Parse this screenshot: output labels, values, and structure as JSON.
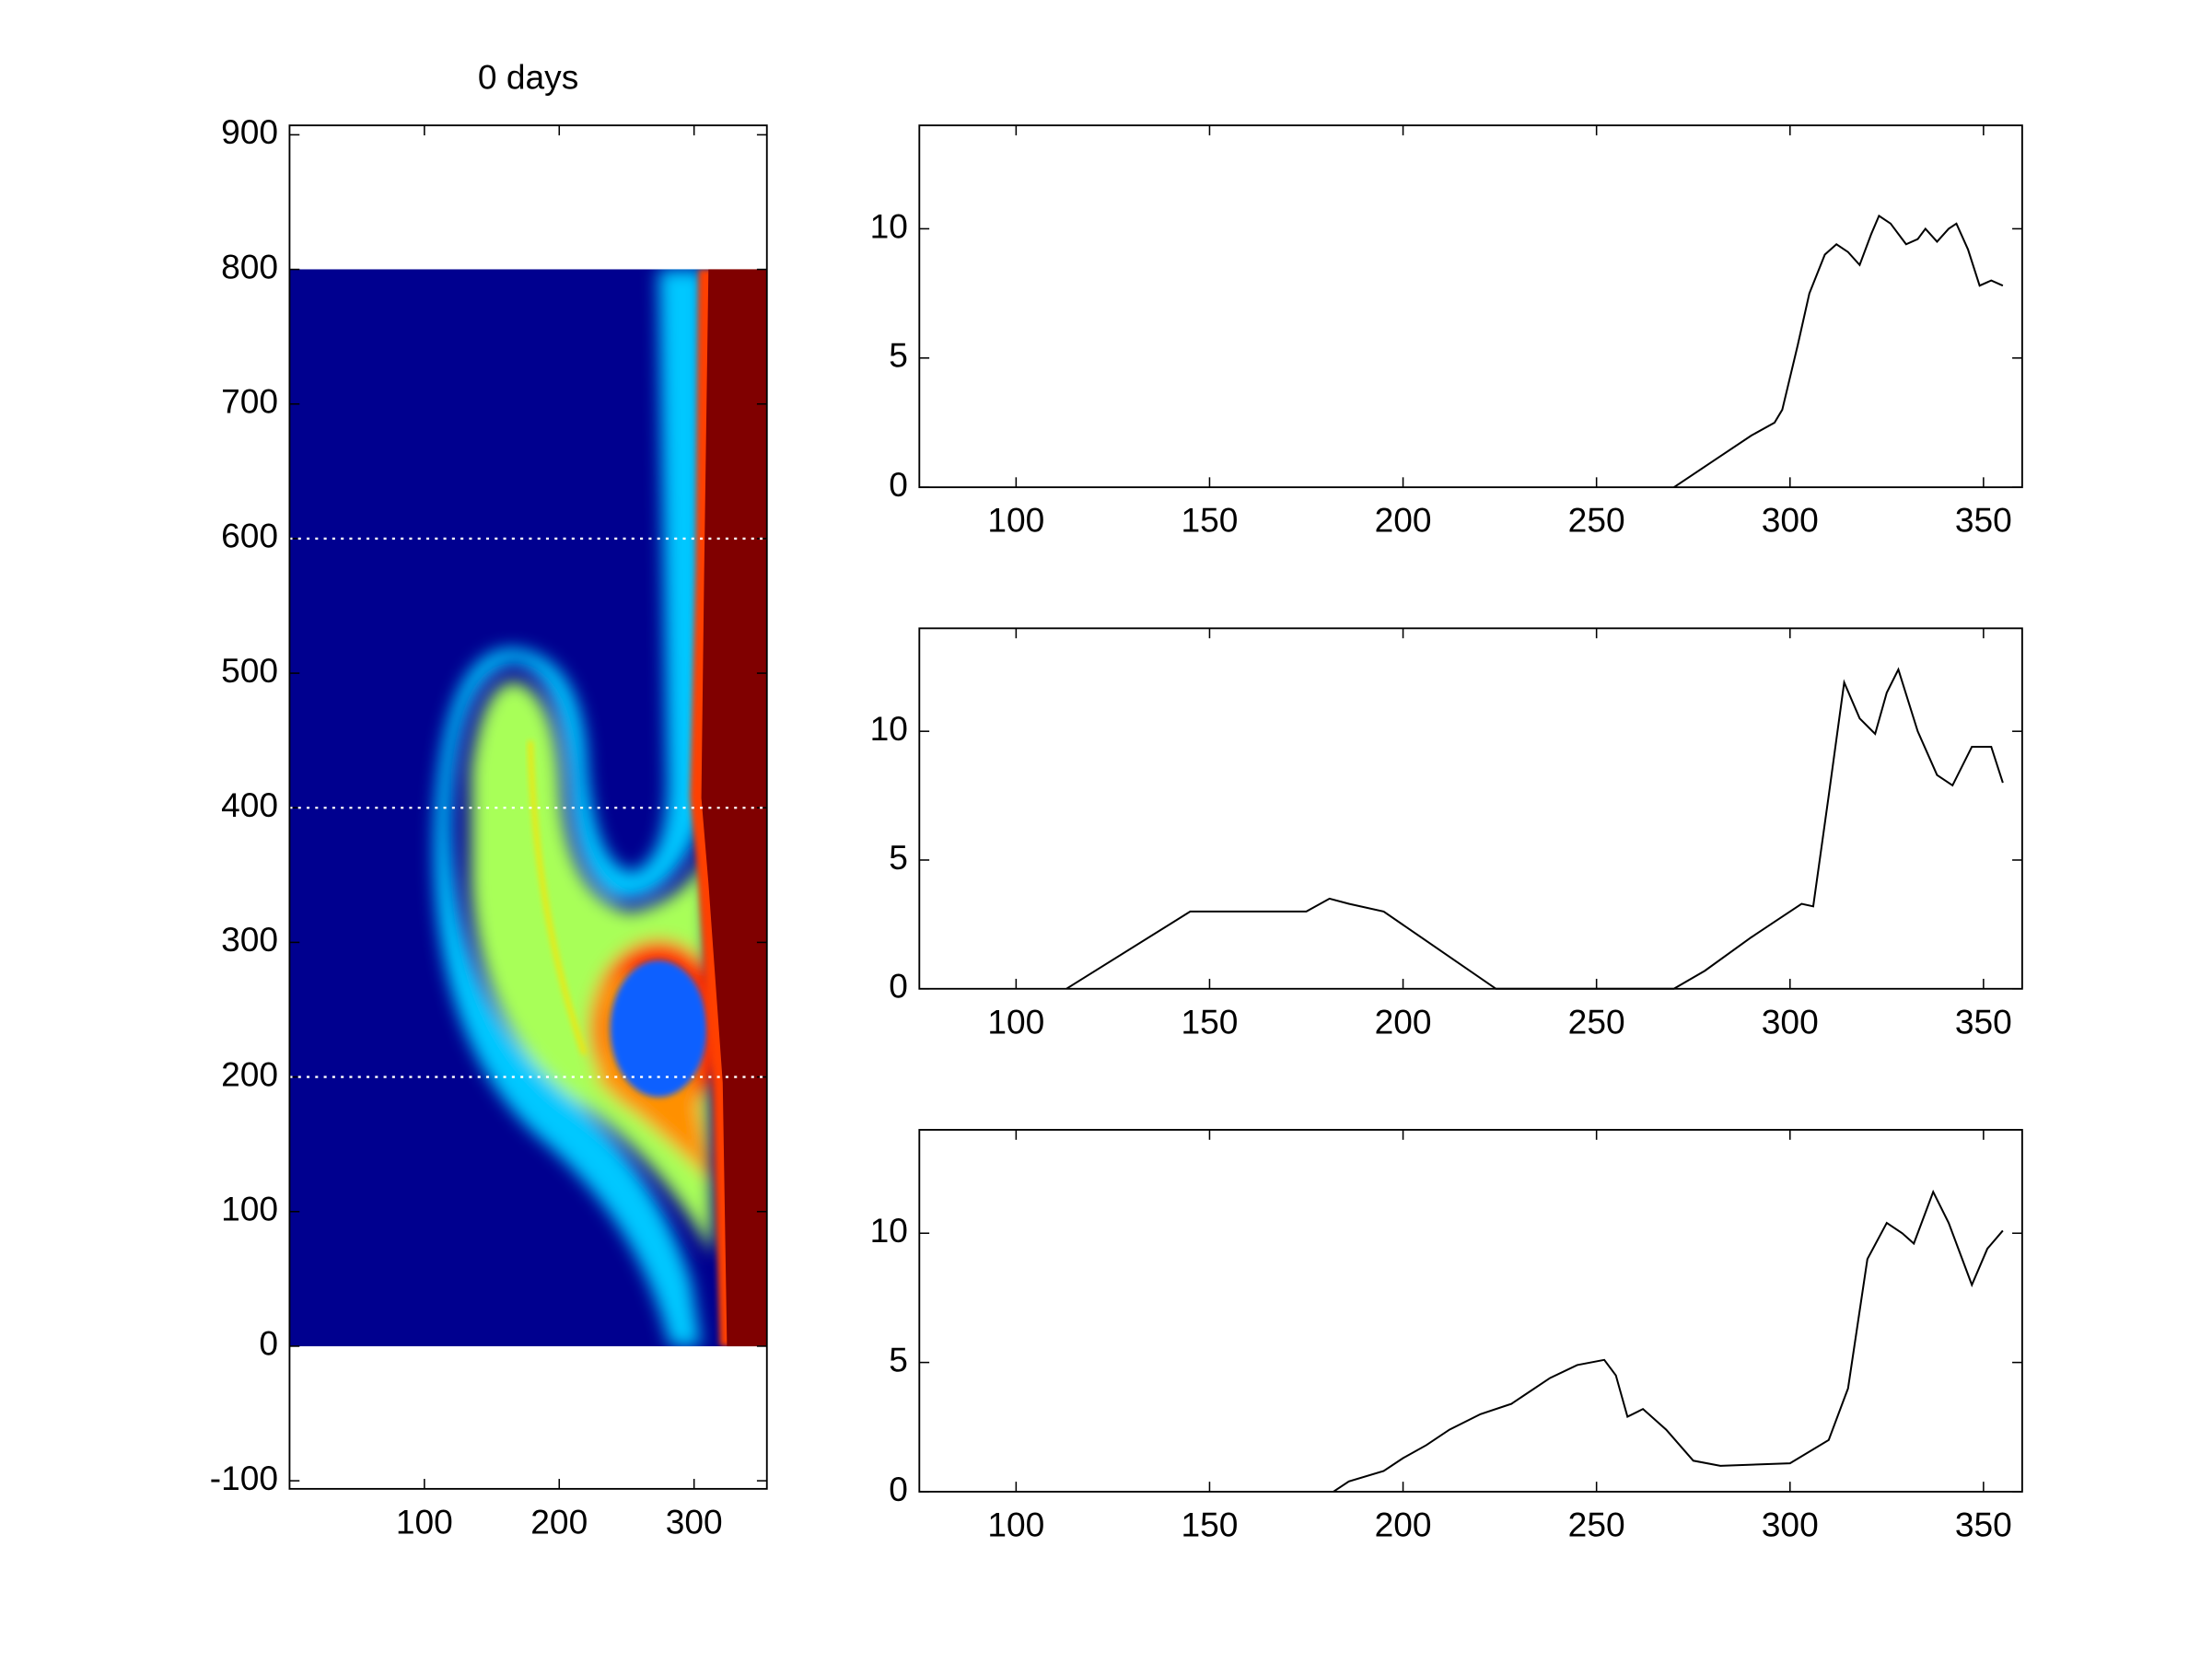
{
  "chart_data": [
    {
      "type": "heatmap",
      "title": "0 days",
      "xlim": [
        0,
        354
      ],
      "ylim": [
        -106,
        907
      ],
      "xticks": [
        100,
        200,
        300
      ],
      "yticks": [
        -100,
        0,
        100,
        200,
        300,
        400,
        500,
        600,
        700,
        800,
        900
      ],
      "hlines": [
        200,
        400,
        600
      ]
    },
    {
      "type": "line",
      "xlim": [
        75,
        360
      ],
      "ylim": [
        0,
        14
      ],
      "xticks": [
        100,
        150,
        200,
        250,
        300,
        350
      ],
      "yticks": [
        0,
        5,
        10
      ],
      "color": "#000000",
      "x": [
        270,
        280,
        290,
        296,
        298,
        302,
        305,
        309,
        312,
        315,
        318,
        321,
        323,
        326,
        330,
        333,
        335,
        338,
        341,
        343,
        346,
        349,
        352,
        355
      ],
      "values": [
        0,
        1,
        2,
        2.5,
        3,
        5.5,
        7.5,
        9,
        9.4,
        9.1,
        8.6,
        9.8,
        10.5,
        10.2,
        9.4,
        9.6,
        10,
        9.5,
        10,
        10.2,
        9.2,
        7.8,
        8,
        7.8
      ]
    },
    {
      "type": "line",
      "xlim": [
        75,
        360
      ],
      "ylim": [
        0,
        14
      ],
      "xticks": [
        100,
        150,
        200,
        250,
        300,
        350
      ],
      "yticks": [
        0,
        5,
        10
      ],
      "color": "#000000",
      "x": [
        113,
        145,
        175,
        181,
        186,
        195,
        224,
        270,
        278,
        290,
        296,
        303,
        306,
        310,
        314,
        318,
        322,
        325,
        328,
        333,
        338,
        342,
        347,
        352,
        355
      ],
      "values": [
        0,
        3,
        3,
        3.5,
        3.3,
        3,
        0,
        0,
        0.7,
        2,
        2.6,
        3.3,
        3.2,
        7.5,
        11.9,
        10.5,
        9.9,
        11.5,
        12.4,
        10,
        8.3,
        7.9,
        9.4,
        9.4,
        8
      ]
    },
    {
      "type": "line",
      "xlim": [
        75,
        360
      ],
      "ylim": [
        0,
        14
      ],
      "xticks": [
        100,
        150,
        200,
        250,
        300,
        350
      ],
      "yticks": [
        0,
        5,
        10
      ],
      "color": "#000000",
      "x": [
        182,
        186,
        195,
        200,
        206,
        212,
        220,
        228,
        238,
        245,
        252,
        255,
        258,
        262,
        268,
        275,
        282,
        300,
        310,
        315,
        320,
        325,
        329,
        332,
        337,
        341,
        347,
        351,
        355
      ],
      "values": [
        0,
        0.4,
        0.8,
        1.3,
        1.8,
        2.4,
        3,
        3.4,
        4.4,
        4.9,
        5.1,
        4.5,
        2.9,
        3.2,
        2.4,
        1.2,
        1,
        1.1,
        2,
        4,
        9,
        10.4,
        10,
        9.6,
        11.6,
        10.4,
        8,
        9.4,
        10.1
      ]
    }
  ]
}
